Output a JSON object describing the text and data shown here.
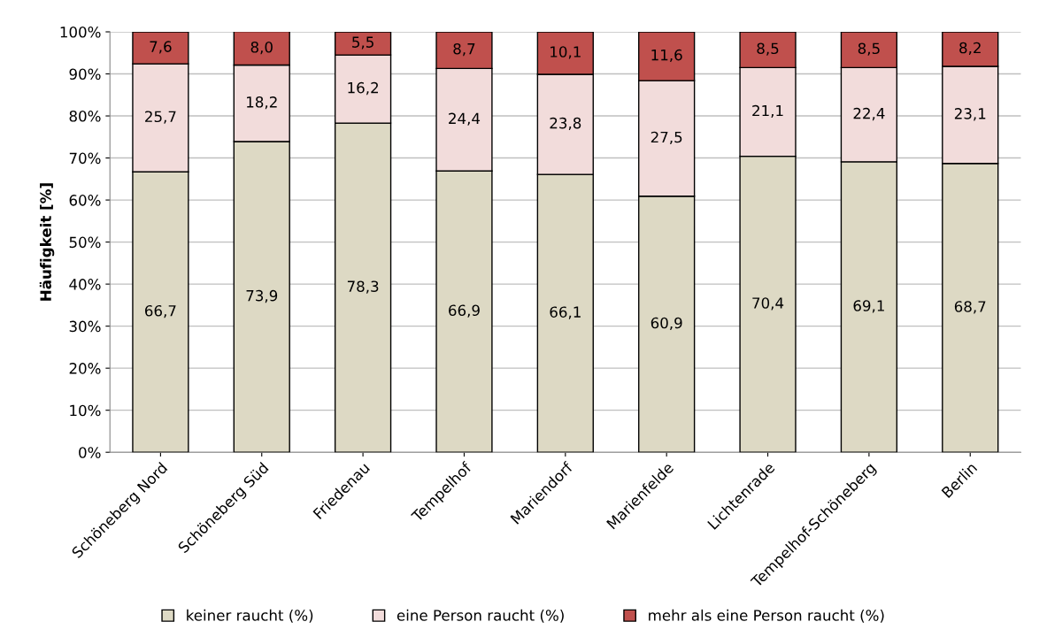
{
  "chart_data": {
    "type": "bar",
    "stacked": true,
    "ylabel": "Häufigkeit [%]",
    "categories": [
      "Schöneberg Nord",
      "Schöneberg Süd",
      "Friedenau",
      "Tempelhof",
      "Mariendorf",
      "Marienfelde",
      "Lichtenrade",
      "Tempelhof-Schöneberg",
      "Berlin"
    ],
    "series": [
      {
        "name": "keiner raucht (%)",
        "color": "#ddd9c4",
        "values": [
          66.7,
          73.9,
          78.3,
          66.9,
          66.1,
          60.9,
          70.4,
          69.1,
          68.7
        ],
        "value_labels": [
          "66,7",
          "73,9",
          "78,3",
          "66,9",
          "66,1",
          "60,9",
          "70,4",
          "69,1",
          "68,7"
        ]
      },
      {
        "name": "eine Person raucht (%)",
        "color": "#f2dcdb",
        "values": [
          25.7,
          18.2,
          16.2,
          24.4,
          23.8,
          27.5,
          21.1,
          22.4,
          23.1
        ],
        "value_labels": [
          "25,7",
          "18,2",
          "16,2",
          "24,4",
          "23,8",
          "27,5",
          "21,1",
          "22,4",
          "23,1"
        ]
      },
      {
        "name": "mehr als eine Person raucht (%)",
        "color": "#c0504d",
        "values": [
          7.6,
          8.0,
          5.5,
          8.7,
          10.1,
          11.6,
          8.5,
          8.5,
          8.2
        ],
        "value_labels": [
          "7,6",
          "8,0",
          "5,5",
          "8,7",
          "10,1",
          "11,6",
          "8,5",
          "8,5",
          "8,2"
        ]
      }
    ],
    "ylim": [
      0,
      100
    ],
    "yticks": [
      {
        "value": 0,
        "label": "0%"
      },
      {
        "value": 10,
        "label": "10%"
      },
      {
        "value": 20,
        "label": "20%"
      },
      {
        "value": 30,
        "label": "30%"
      },
      {
        "value": 40,
        "label": "40%"
      },
      {
        "value": 50,
        "label": "50%"
      },
      {
        "value": 60,
        "label": "60%"
      },
      {
        "value": 70,
        "label": "70%"
      },
      {
        "value": 80,
        "label": "80%"
      },
      {
        "value": 90,
        "label": "90%"
      },
      {
        "value": 100,
        "label": "100%"
      }
    ],
    "grid": "y",
    "legend": "bottom"
  }
}
